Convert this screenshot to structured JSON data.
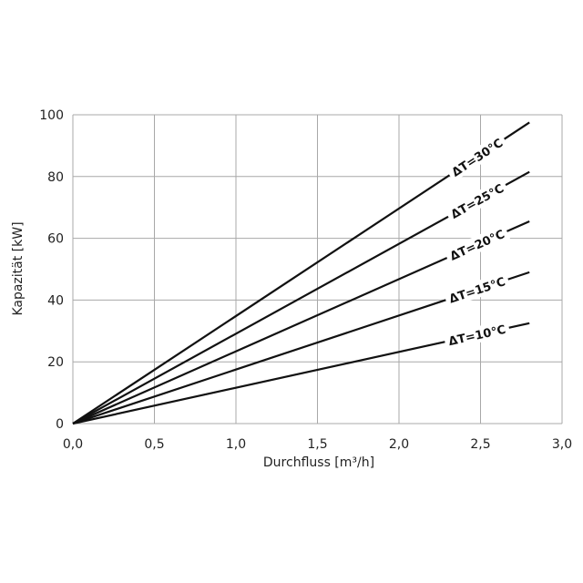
{
  "chart_data": {
    "type": "line",
    "xlabel": "Durchfluss [m³/h]",
    "ylabel": "Kapazität [kW]",
    "xlim": [
      0,
      3.0
    ],
    "ylim": [
      0,
      100
    ],
    "x_ticks": [
      0,
      0.5,
      1.0,
      1.5,
      2.0,
      2.5,
      3.0
    ],
    "x_tick_labels": [
      "0,0",
      "0,5",
      "1,0",
      "1,5",
      "2,0",
      "2,5",
      "3,0"
    ],
    "y_ticks": [
      0,
      20,
      40,
      60,
      80,
      100
    ],
    "y_tick_labels": [
      "0",
      "20",
      "40",
      "60",
      "80",
      "100"
    ],
    "grid": true,
    "series": [
      {
        "name": "ΔT=30°C",
        "x": [
          0,
          2.8
        ],
        "y": [
          0,
          97.5
        ]
      },
      {
        "name": "ΔT=25°C",
        "x": [
          0,
          2.8
        ],
        "y": [
          0,
          81.5
        ]
      },
      {
        "name": "ΔT=20°C",
        "x": [
          0,
          2.8
        ],
        "y": [
          0,
          65.5
        ]
      },
      {
        "name": "ΔT=15°C",
        "x": [
          0,
          2.8
        ],
        "y": [
          0,
          49
        ]
      },
      {
        "name": "ΔT=10°C",
        "x": [
          0,
          2.8
        ],
        "y": [
          0,
          32.5
        ]
      }
    ]
  }
}
